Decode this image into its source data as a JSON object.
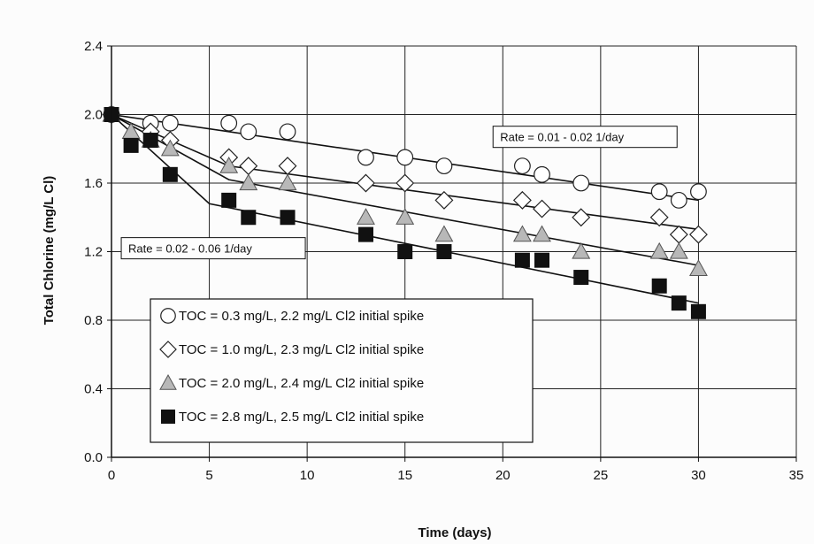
{
  "chart_data": {
    "type": "scatter",
    "title": "",
    "xlabel": "Time (days)",
    "ylabel": "Total Chlorine (mg/L Cl)",
    "xlim": [
      0,
      35
    ],
    "ylim": [
      0.0,
      2.4
    ],
    "xticks": [
      "0",
      "5",
      "10",
      "15",
      "20",
      "25",
      "30",
      "35"
    ],
    "yticks": [
      "0.0",
      "0.4",
      "0.8",
      "1.2",
      "1.6",
      "2.0",
      "2.4"
    ],
    "grid": true,
    "legend_position": "lower-left",
    "series": [
      {
        "name": "TOC = 0.3 mg/L, 2.2 mg/L Cl2 initial spike",
        "marker": "circle",
        "fill": "#ffffff",
        "points": [
          [
            0,
            2.0
          ],
          [
            2,
            1.95
          ],
          [
            3,
            1.95
          ],
          [
            6,
            1.95
          ],
          [
            7,
            1.9
          ],
          [
            9,
            1.9
          ],
          [
            13,
            1.75
          ],
          [
            15,
            1.75
          ],
          [
            17,
            1.7
          ],
          [
            21,
            1.7
          ],
          [
            22,
            1.65
          ],
          [
            24,
            1.6
          ],
          [
            28,
            1.55
          ],
          [
            29,
            1.5
          ],
          [
            30,
            1.55
          ]
        ],
        "fit": [
          [
            0,
            2.0
          ],
          [
            30,
            1.5
          ]
        ]
      },
      {
        "name": "TOC = 1.0 mg/L, 2.3 mg/L Cl2 initial spike",
        "marker": "diamond",
        "fill": "#ffffff",
        "points": [
          [
            0,
            2.0
          ],
          [
            2,
            1.9
          ],
          [
            3,
            1.85
          ],
          [
            6,
            1.75
          ],
          [
            7,
            1.7
          ],
          [
            9,
            1.7
          ],
          [
            13,
            1.6
          ],
          [
            15,
            1.6
          ],
          [
            17,
            1.5
          ],
          [
            21,
            1.5
          ],
          [
            22,
            1.45
          ],
          [
            24,
            1.4
          ],
          [
            28,
            1.4
          ],
          [
            29,
            1.3
          ],
          [
            30,
            1.3
          ]
        ],
        "fit": [
          [
            0,
            2.0
          ],
          [
            6,
            1.7
          ],
          [
            30,
            1.33
          ]
        ]
      },
      {
        "name": "TOC = 2.0 mg/L, 2.4 mg/L Cl2 initial spike",
        "marker": "triangle",
        "fill": "#b8b8b8",
        "points": [
          [
            0,
            2.0
          ],
          [
            1,
            1.9
          ],
          [
            2,
            1.85
          ],
          [
            3,
            1.8
          ],
          [
            6,
            1.7
          ],
          [
            7,
            1.6
          ],
          [
            9,
            1.6
          ],
          [
            13,
            1.4
          ],
          [
            15,
            1.4
          ],
          [
            17,
            1.3
          ],
          [
            21,
            1.3
          ],
          [
            22,
            1.3
          ],
          [
            24,
            1.2
          ],
          [
            28,
            1.2
          ],
          [
            29,
            1.2
          ],
          [
            30,
            1.1
          ]
        ],
        "fit": [
          [
            0,
            2.0
          ],
          [
            6,
            1.62
          ],
          [
            30,
            1.12
          ]
        ]
      },
      {
        "name": "TOC = 2.8 mg/L, 2.5 mg/L Cl2 initial spike",
        "marker": "square",
        "fill": "#111111",
        "points": [
          [
            0,
            2.0
          ],
          [
            1,
            1.82
          ],
          [
            2,
            1.85
          ],
          [
            3,
            1.65
          ],
          [
            6,
            1.5
          ],
          [
            7,
            1.4
          ],
          [
            9,
            1.4
          ],
          [
            13,
            1.3
          ],
          [
            15,
            1.2
          ],
          [
            17,
            1.2
          ],
          [
            21,
            1.15
          ],
          [
            22,
            1.15
          ],
          [
            24,
            1.05
          ],
          [
            28,
            1.0
          ],
          [
            29,
            0.9
          ],
          [
            30,
            0.85
          ]
        ],
        "fit": [
          [
            0,
            2.0
          ],
          [
            5,
            1.48
          ],
          [
            30,
            0.9
          ]
        ]
      }
    ],
    "annotations": [
      {
        "text": "Rate = 0.01 - 0.02 1/day",
        "at": [
          19.5,
          1.87
        ]
      },
      {
        "text": "Rate = 0.02 - 0.06 1/day",
        "at": [
          0.5,
          1.22
        ]
      }
    ]
  }
}
